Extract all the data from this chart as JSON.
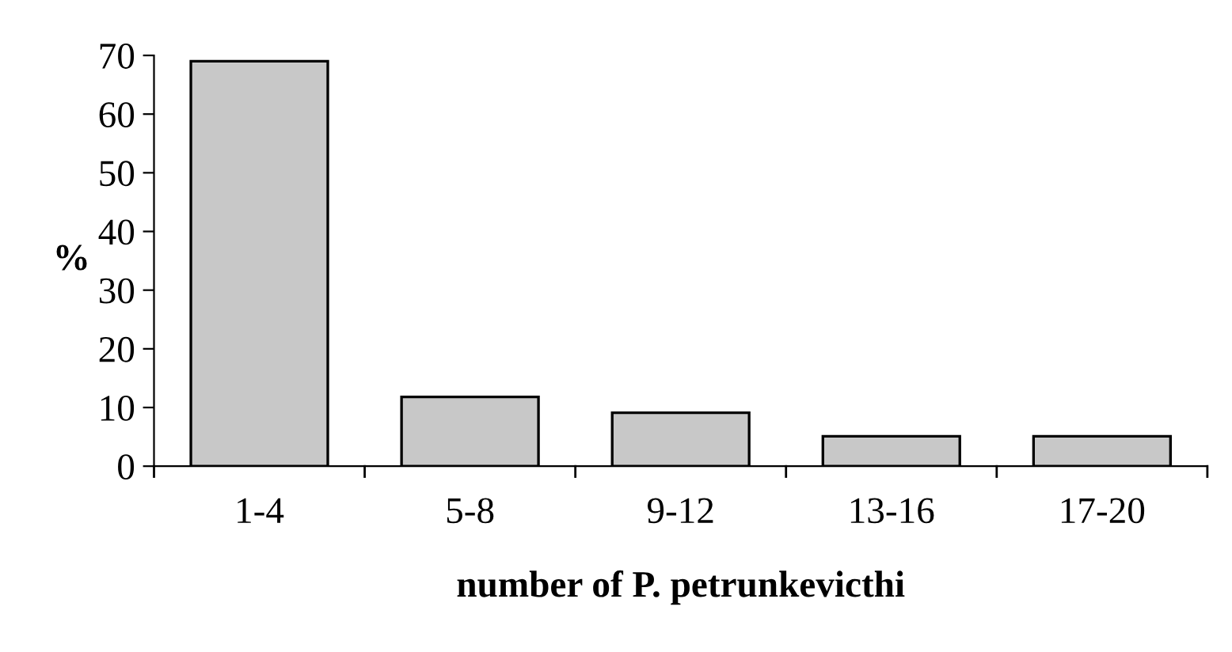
{
  "chart_data": {
    "type": "bar",
    "xlabel": "number of P. petrunkevicthi",
    "ylabel": "%",
    "categories": [
      "1-4",
      "5-8",
      "9-12",
      "13-16",
      "17-20"
    ],
    "values": [
      69,
      11.8,
      9.1,
      5.1,
      5.1
    ],
    "color": "#c8c8c8",
    "ylim": [
      0,
      70
    ],
    "yticks": [
      0,
      10,
      20,
      30,
      40,
      50,
      60,
      70
    ],
    "grid": false
  }
}
